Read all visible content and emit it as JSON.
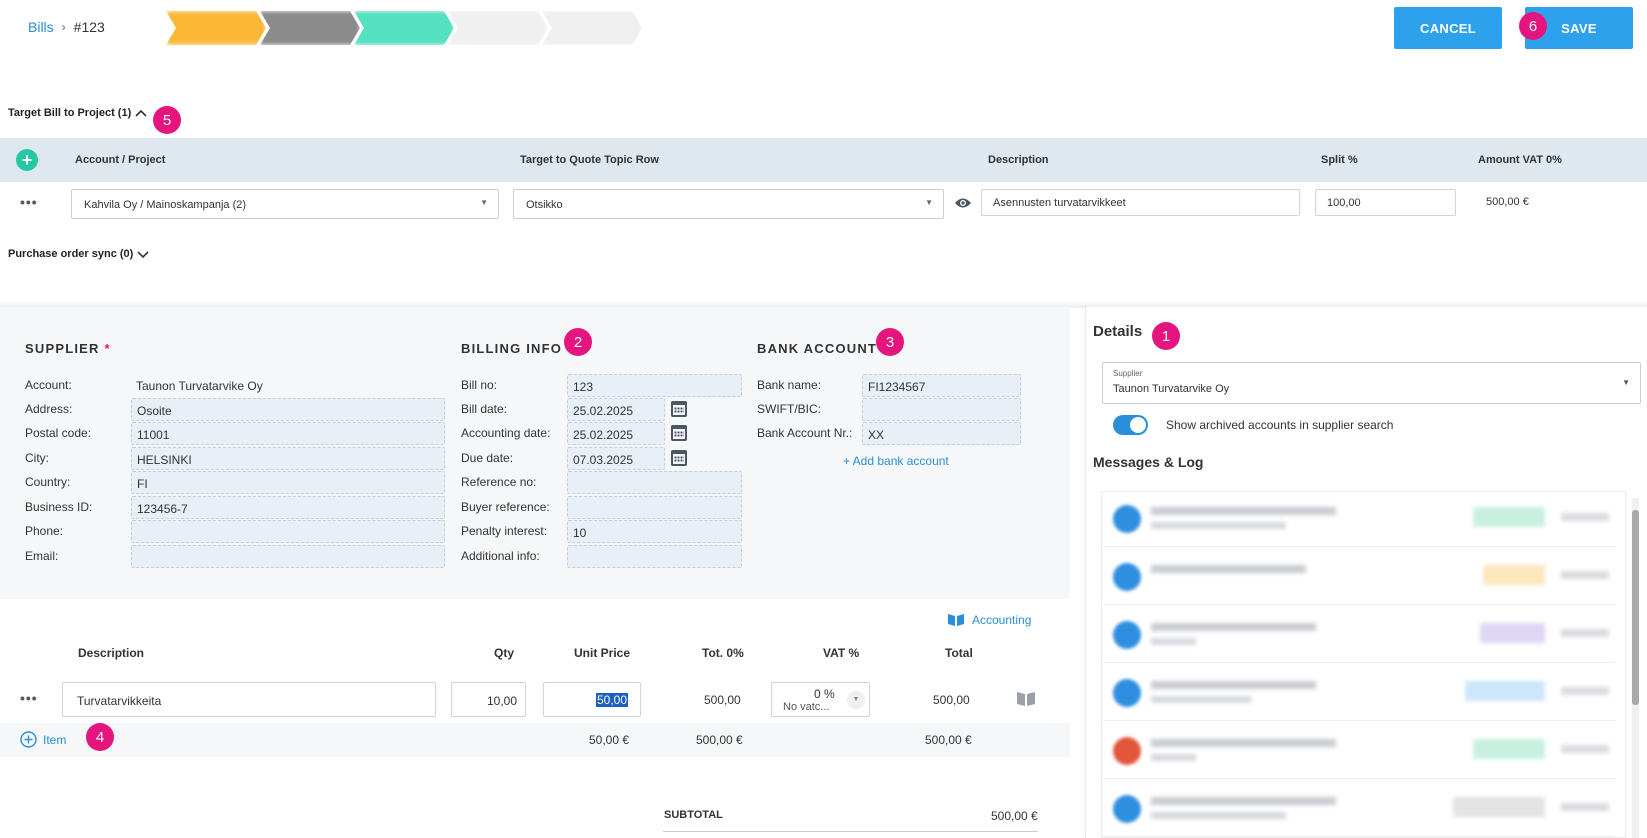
{
  "breadcrumb": {
    "parent": "Bills",
    "current": "#123"
  },
  "status_pills": [
    {
      "label": "",
      "color": "#fdb736"
    },
    {
      "label": "",
      "color": "#8b8b8b"
    },
    {
      "label": "",
      "color": "#54e1bf"
    },
    {
      "label": "",
      "color": "#f0f0f0"
    },
    {
      "label": "",
      "color": "#efefef"
    }
  ],
  "actions": {
    "cancel": "CANCEL",
    "save": "SAVE"
  },
  "markers": {
    "m1": "1",
    "m2": "2",
    "m3": "3",
    "m4": "4",
    "m5": "5",
    "m6": "6"
  },
  "target_section": {
    "title": "Target Bill to Project (1)",
    "columns": {
      "account": "Account / Project",
      "quote_row": "Target to Quote Topic Row",
      "description": "Description",
      "split": "Split %",
      "amount": "Amount VAT 0%"
    },
    "row": {
      "account": "Kahvila Oy / Mainoskampanja (2)",
      "quote_row": "Otsikko",
      "description": "Asennusten turvatarvikkeet",
      "split": "100,00",
      "amount": "500,00 €"
    }
  },
  "po_sync": {
    "title": "Purchase order sync (0)"
  },
  "supplier": {
    "title": "SUPPLIER",
    "required": "*",
    "fields": {
      "account": {
        "label": "Account:",
        "value": "Taunon Turvatarvike Oy"
      },
      "address": {
        "label": "Address:",
        "value": "Osoite"
      },
      "postal": {
        "label": "Postal code:",
        "value": "11001"
      },
      "city": {
        "label": "City:",
        "value": "HELSINKI"
      },
      "country": {
        "label": "Country:",
        "value": "FI"
      },
      "business_id": {
        "label": "Business ID:",
        "value": "123456-7"
      },
      "phone": {
        "label": "Phone:",
        "value": ""
      },
      "email": {
        "label": "Email:",
        "value": ""
      }
    }
  },
  "billing": {
    "title": "BILLING INFO",
    "fields": {
      "bill_no": {
        "label": "Bill no:",
        "value": "123"
      },
      "bill_date": {
        "label": "Bill date:",
        "value": "25.02.2025"
      },
      "acc_date": {
        "label": "Accounting date:",
        "value": "25.02.2025"
      },
      "due_date": {
        "label": "Due date:",
        "value": "07.03.2025"
      },
      "reference": {
        "label": "Reference no:",
        "value": ""
      },
      "buyer_ref": {
        "label": "Buyer reference:",
        "value": ""
      },
      "penalty": {
        "label": "Penalty interest:",
        "value": "10"
      },
      "additional": {
        "label": "Additional info:",
        "value": ""
      }
    }
  },
  "bank": {
    "title": "BANK ACCOUNT",
    "fields": {
      "name": {
        "label": "Bank name:",
        "value": "FI1234567"
      },
      "swift": {
        "label": "SWIFT/BIC:",
        "value": ""
      },
      "account_nr": {
        "label": "Bank Account Nr.:",
        "value": "XX"
      }
    },
    "add": "+ Add bank account"
  },
  "items": {
    "accounting_link": "Accounting",
    "columns": {
      "description": "Description",
      "qty": "Qty",
      "unit_price": "Unit Price",
      "tot0": "Tot. 0%",
      "vat": "VAT %",
      "total": "Total"
    },
    "row": {
      "description": "Turvatarvikkeita",
      "qty": "10,00",
      "unit_price": "50,00",
      "tot0": "500,00",
      "vat_pct": "0 %",
      "vat_code": "No vatc...",
      "total": "500,00"
    },
    "add_item": "Item",
    "sums": {
      "unit_price": "50,00 €",
      "tot0": "500,00 €",
      "total": "500,00 €"
    },
    "subtotal_label": "SUBTOTAL",
    "subtotal_value": "500,00 €"
  },
  "details": {
    "title": "Details",
    "supplier_label": "Supplier",
    "supplier_value": "Taunon Turvatarvike Oy",
    "toggle_label": "Show archived accounts in supplier search",
    "toggle_on": true,
    "messages_title": "Messages & Log"
  },
  "log_rows": [
    {
      "avatar_color": "#2e8fe0",
      "tag_color": "#c8f0e0"
    },
    {
      "avatar_color": "#2e8fe0",
      "tag_color": "#fde7bd"
    },
    {
      "avatar_color": "#2e8fe0",
      "tag_color": "#ded6f3"
    },
    {
      "avatar_color": "#2e8fe0",
      "tag_color": "#cde6fb"
    },
    {
      "avatar_color": "#e2573a",
      "tag_color": "#c8f0e0"
    },
    {
      "avatar_color": "#2e8fe0",
      "tag_color": "#e3e3e3"
    }
  ]
}
